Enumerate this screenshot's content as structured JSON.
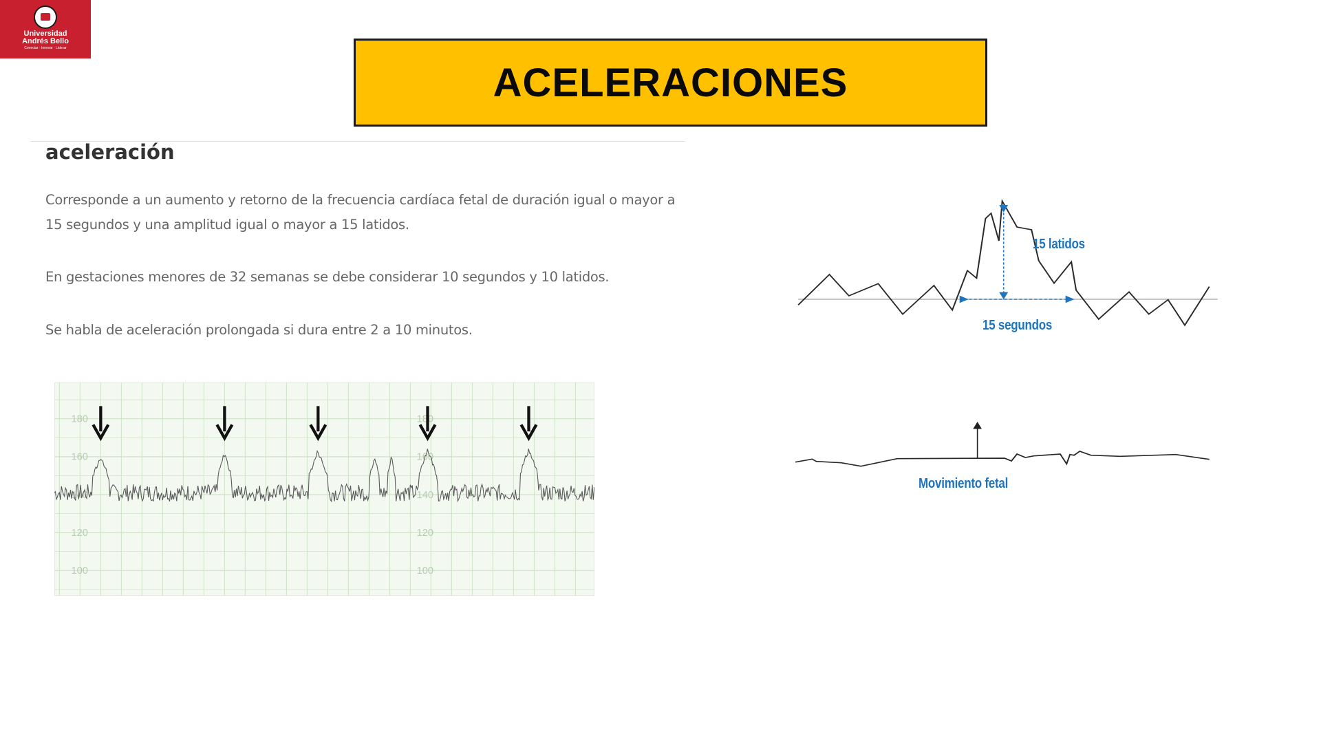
{
  "logo": {
    "name": "Universidad Andrés Bello",
    "line1": "Universidad",
    "line2": "Andrés Bello",
    "tagline": "Conectar · Innovar · Liderar"
  },
  "title": "ACELERACIONES",
  "colors": {
    "title_bg": "#ffc000",
    "logo_bg": "#c8202f",
    "annotation": "#1f75bd"
  },
  "section": {
    "heading": "aceleración",
    "paragraphs": [
      "Corresponde a un aumento y retorno de la frecuencia cardíaca fetal de duración igual o mayor a 15 segundos y una amplitud igual o mayor a 15 latidos.",
      "En gestaciones menores de 32 semanas se debe considerar 10 segundos y 10 latidos.",
      "Se habla de aceleración prolongada si dura entre 2 a 10 minutos."
    ]
  },
  "ctg_strip": {
    "y_ticks": [
      "180",
      "160",
      "140",
      "120",
      "100"
    ],
    "arrow_count": 5
  },
  "diagram": {
    "amplitude_label": "15 latidos",
    "duration_label": "15 segundos",
    "movement_label": "Movimiento fetal"
  }
}
